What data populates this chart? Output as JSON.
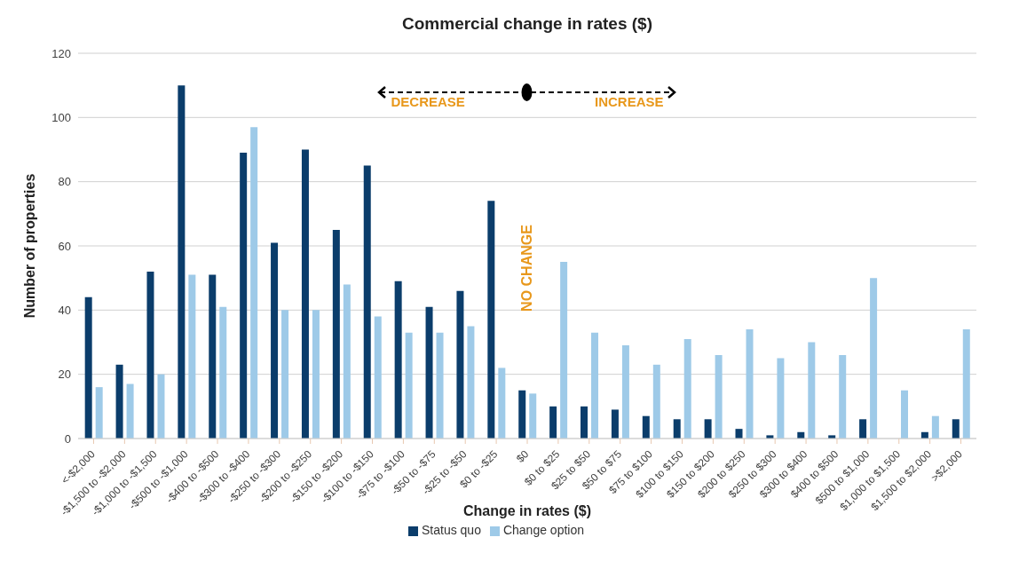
{
  "chart_data": {
    "type": "bar",
    "title": "Commercial change in rates ($)",
    "xlabel": "Change in rates ($)",
    "ylabel": "Number of properties",
    "categories": [
      "<-$2,000",
      "-$1,500 to -$2,000",
      "-$1,000 to -$1,500",
      "-$500 to -$1,000",
      "-$400 to -$500",
      "-$300 to -$400",
      "-$250 to -$300",
      "-$200 to -$250",
      "-$150 to -$200",
      "-$100 to -$150",
      "-$75 to -$100",
      "-$50 to -$75",
      "-$25 to -$50",
      "$0 to -$25",
      "$0",
      "$0 to $25",
      "$25 to $50",
      "$50 to $75",
      "$75 to $100",
      "$100 to $150",
      "$150 to $200",
      "$200 to $250",
      "$250 to $300",
      "$300 to $400",
      "$400 to $500",
      "$500 to $1,000",
      "$1,000 to $1,500",
      "$1,500 to $2,000",
      ">$2,000"
    ],
    "series": [
      {
        "name": "Status quo",
        "color": "#0b3d6b",
        "values": [
          44,
          23,
          52,
          110,
          51,
          89,
          61,
          90,
          65,
          85,
          49,
          41,
          46,
          74,
          15,
          10,
          10,
          9,
          7,
          6,
          6,
          3,
          1,
          2,
          1,
          6,
          0,
          2,
          6
        ]
      },
      {
        "name": "Change option",
        "color": "#9ecae8",
        "values": [
          16,
          17,
          20,
          51,
          41,
          97,
          40,
          40,
          48,
          38,
          33,
          33,
          35,
          22,
          14,
          55,
          33,
          29,
          23,
          31,
          26,
          34,
          25,
          30,
          26,
          50,
          15,
          7,
          34
        ]
      }
    ],
    "ylim": [
      0,
      120
    ],
    "yticks": [
      0,
      20,
      40,
      60,
      80,
      100,
      120
    ],
    "grid": "y",
    "legend": "bottom",
    "annotations": [
      "DECREASE",
      "INCREASE",
      "NO CHANGE"
    ]
  }
}
